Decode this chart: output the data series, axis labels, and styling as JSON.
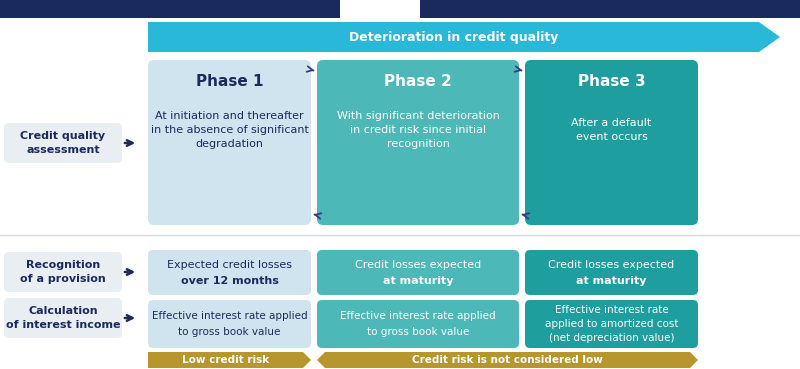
{
  "bg_color": "#ffffff",
  "header_bar_color": "#1b2a5e",
  "arrow_color": "#29b8d8",
  "arrow_label": "Deterioration in credit quality",
  "phase1_box_color": "#cfe4ef",
  "phase2_box_color": "#4db8b8",
  "phase3_box_color": "#1e9e9e",
  "phase1_title": "Phase 1",
  "phase2_title": "Phase 2",
  "phase3_title": "Phase 3",
  "phase1_desc": "At initiation and thereafter\nin the absence of significant\ndegradation",
  "phase2_desc": "With significant deterioration\nin credit risk since initial\nrecognition",
  "phase3_desc": "After a default\nevent occurs",
  "left_label_color": "#1b2a5e",
  "left_box_color": "#e8eef2",
  "left_labels": [
    "Credit quality\nassessment",
    "Recognition\nof a provision",
    "Calculation\nof interest income"
  ],
  "prov1_line1": "Expected credit losses",
  "prov1_line2": "over 12 months",
  "prov2_line1": "Credit losses expected",
  "prov2_line2": "at maturity",
  "prov3_line1": "Credit losses expected",
  "prov3_line2": "at maturity",
  "int1_line1": "Effective interest rate applied",
  "int1_line2": "to gross book value",
  "int2_line1": "Effective interest rate applied",
  "int2_line2": "to gross book value",
  "int3_line1": "Effective interest rate",
  "int3_line2": "applied to amortized cost",
  "int3_line3": "(net depreciation value)",
  "bottom1_text": "Low credit risk",
  "bottom2_text": "Credit risk is not considered low",
  "bottom_color": "#b8962e",
  "arrow_dark_color": "#3a3a8c",
  "phase1_text_color": "#1b2a5e",
  "phase2_text_color": "#ffffff",
  "phase3_text_color": "#ffffff"
}
